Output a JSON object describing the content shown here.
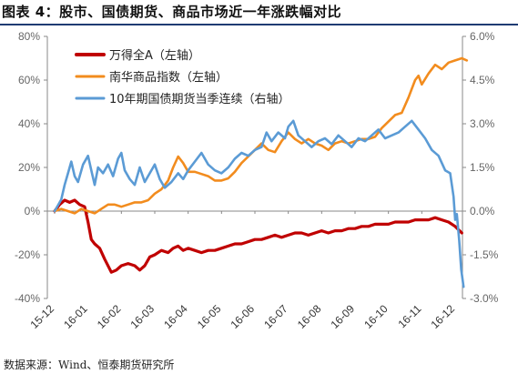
{
  "page": {
    "title": "图表 4：股市、国债期货、商品市场近一年涨跌幅对比",
    "source": "数据来源：Wind、恒泰期货研究所"
  },
  "chart_data": {
    "type": "line",
    "x": [
      "15-12",
      "16-01",
      "16-02",
      "16-03",
      "16-04",
      "16-05",
      "16-06",
      "16-07",
      "16-08",
      "16-09",
      "16-10",
      "16-11",
      "16-12"
    ],
    "left_axis": {
      "ylim": [
        -40,
        80
      ],
      "ticks": [
        "80%",
        "60%",
        "40%",
        "20%",
        "0%",
        "-20%",
        "-40%"
      ],
      "tick_values": [
        80,
        60,
        40,
        20,
        0,
        -20,
        -40
      ]
    },
    "right_axis": {
      "ylim": [
        -3.0,
        6.0
      ],
      "ticks": [
        "6.0%",
        "4.5%",
        "3.0%",
        "1.5%",
        "0.0%",
        "-1.5%",
        "-3.0%"
      ],
      "tick_values": [
        6.0,
        4.5,
        3.0,
        1.5,
        0.0,
        -1.5,
        -3.0
      ]
    },
    "legend_position": "top-left",
    "series": [
      {
        "name": "万得全A（左轴）",
        "color": "#c00000",
        "axis": "left",
        "points": [
          [
            0,
            0
          ],
          [
            0.15,
            3
          ],
          [
            0.3,
            5
          ],
          [
            0.45,
            4
          ],
          [
            0.6,
            5
          ],
          [
            0.75,
            3
          ],
          [
            0.9,
            2
          ],
          [
            1.0,
            -5
          ],
          [
            1.1,
            -13
          ],
          [
            1.2,
            -15
          ],
          [
            1.35,
            -17
          ],
          [
            1.5,
            -22
          ],
          [
            1.7,
            -28
          ],
          [
            1.85,
            -27
          ],
          [
            2.0,
            -25
          ],
          [
            2.2,
            -24
          ],
          [
            2.4,
            -25
          ],
          [
            2.55,
            -27
          ],
          [
            2.7,
            -25
          ],
          [
            2.85,
            -21
          ],
          [
            3.0,
            -20
          ],
          [
            3.2,
            -18
          ],
          [
            3.4,
            -19
          ],
          [
            3.55,
            -17
          ],
          [
            3.7,
            -16
          ],
          [
            3.85,
            -18
          ],
          [
            4.0,
            -17
          ],
          [
            4.2,
            -18
          ],
          [
            4.4,
            -19
          ],
          [
            4.6,
            -18
          ],
          [
            4.8,
            -18
          ],
          [
            5.0,
            -17
          ],
          [
            5.2,
            -16
          ],
          [
            5.4,
            -15
          ],
          [
            5.6,
            -15
          ],
          [
            5.8,
            -14
          ],
          [
            6.0,
            -13
          ],
          [
            6.2,
            -13
          ],
          [
            6.4,
            -12
          ],
          [
            6.6,
            -11
          ],
          [
            6.8,
            -12
          ],
          [
            7.0,
            -11
          ],
          [
            7.2,
            -10
          ],
          [
            7.4,
            -10
          ],
          [
            7.6,
            -11
          ],
          [
            7.8,
            -10
          ],
          [
            8.0,
            -9
          ],
          [
            8.2,
            -10
          ],
          [
            8.4,
            -9
          ],
          [
            8.6,
            -9
          ],
          [
            8.8,
            -8
          ],
          [
            9.0,
            -8
          ],
          [
            9.2,
            -7
          ],
          [
            9.4,
            -7
          ],
          [
            9.6,
            -6
          ],
          [
            9.8,
            -6
          ],
          [
            10.0,
            -6
          ],
          [
            10.2,
            -5
          ],
          [
            10.4,
            -5
          ],
          [
            10.6,
            -5
          ],
          [
            10.8,
            -4
          ],
          [
            11.0,
            -4
          ],
          [
            11.2,
            -4
          ],
          [
            11.4,
            -3
          ],
          [
            11.6,
            -4
          ],
          [
            11.8,
            -5
          ],
          [
            12.0,
            -7
          ],
          [
            12.2,
            -10
          ]
        ]
      },
      {
        "name": "南华商品指数（左轴）",
        "color": "#f28c1e",
        "axis": "left",
        "points": [
          [
            0,
            0
          ],
          [
            0.2,
            1
          ],
          [
            0.4,
            0
          ],
          [
            0.6,
            -1
          ],
          [
            0.8,
            1
          ],
          [
            1.0,
            0
          ],
          [
            1.2,
            -1
          ],
          [
            1.4,
            1
          ],
          [
            1.6,
            3
          ],
          [
            1.8,
            3
          ],
          [
            2.0,
            2
          ],
          [
            2.2,
            3
          ],
          [
            2.4,
            4
          ],
          [
            2.6,
            4
          ],
          [
            2.8,
            5
          ],
          [
            3.0,
            8
          ],
          [
            3.2,
            10
          ],
          [
            3.4,
            14
          ],
          [
            3.55,
            20
          ],
          [
            3.7,
            25
          ],
          [
            3.85,
            22
          ],
          [
            4.0,
            18
          ],
          [
            4.2,
            18
          ],
          [
            4.4,
            17
          ],
          [
            4.6,
            16
          ],
          [
            4.8,
            14
          ],
          [
            5.0,
            14
          ],
          [
            5.2,
            15
          ],
          [
            5.4,
            18
          ],
          [
            5.6,
            22
          ],
          [
            5.8,
            25
          ],
          [
            6.0,
            28
          ],
          [
            6.2,
            31
          ],
          [
            6.4,
            28
          ],
          [
            6.6,
            27
          ],
          [
            6.8,
            32
          ],
          [
            7.0,
            36
          ],
          [
            7.2,
            33
          ],
          [
            7.4,
            31
          ],
          [
            7.6,
            33
          ],
          [
            7.8,
            31
          ],
          [
            8.0,
            30
          ],
          [
            8.2,
            28
          ],
          [
            8.4,
            31
          ],
          [
            8.6,
            32
          ],
          [
            8.8,
            31
          ],
          [
            9.0,
            32
          ],
          [
            9.2,
            33
          ],
          [
            9.4,
            33
          ],
          [
            9.6,
            34
          ],
          [
            9.8,
            38
          ],
          [
            10.0,
            41
          ],
          [
            10.2,
            44
          ],
          [
            10.4,
            45
          ],
          [
            10.6,
            52
          ],
          [
            10.8,
            60
          ],
          [
            10.9,
            62
          ],
          [
            11.0,
            58
          ],
          [
            11.2,
            63
          ],
          [
            11.4,
            67
          ],
          [
            11.6,
            65
          ],
          [
            11.8,
            68
          ],
          [
            12.0,
            69
          ],
          [
            12.2,
            70
          ],
          [
            12.35,
            69
          ]
        ]
      },
      {
        "name": "10年期国债期货当季连续（右轴）",
        "color": "#5b9bd5",
        "axis": "right",
        "points": [
          [
            0,
            0
          ],
          [
            0.1,
            0.2
          ],
          [
            0.2,
            0.4
          ],
          [
            0.3,
            0.9
          ],
          [
            0.4,
            1.3
          ],
          [
            0.5,
            1.7
          ],
          [
            0.6,
            1.2
          ],
          [
            0.7,
            1.0
          ],
          [
            0.85,
            1.6
          ],
          [
            1.0,
            1.9
          ],
          [
            1.1,
            1.4
          ],
          [
            1.2,
            0.9
          ],
          [
            1.3,
            1.5
          ],
          [
            1.45,
            1.3
          ],
          [
            1.6,
            1.6
          ],
          [
            1.75,
            1.2
          ],
          [
            1.9,
            1.8
          ],
          [
            2.0,
            2.0
          ],
          [
            2.1,
            1.4
          ],
          [
            2.25,
            1.1
          ],
          [
            2.4,
            0.9
          ],
          [
            2.55,
            1.5
          ],
          [
            2.7,
            1.0
          ],
          [
            2.85,
            1.3
          ],
          [
            3.0,
            1.6
          ],
          [
            3.15,
            1.1
          ],
          [
            3.3,
            0.8
          ],
          [
            3.5,
            1.0
          ],
          [
            3.7,
            1.3
          ],
          [
            3.85,
            1.1
          ],
          [
            4.0,
            1.4
          ],
          [
            4.2,
            1.7
          ],
          [
            4.4,
            2.0
          ],
          [
            4.6,
            1.6
          ],
          [
            4.8,
            1.4
          ],
          [
            5.0,
            1.3
          ],
          [
            5.2,
            1.5
          ],
          [
            5.4,
            1.8
          ],
          [
            5.6,
            2.0
          ],
          [
            5.8,
            1.9
          ],
          [
            6.0,
            2.1
          ],
          [
            6.2,
            2.2
          ],
          [
            6.35,
            2.7
          ],
          [
            6.5,
            2.4
          ],
          [
            6.7,
            2.7
          ],
          [
            6.9,
            2.5
          ],
          [
            7.0,
            2.9
          ],
          [
            7.15,
            3.1
          ],
          [
            7.3,
            2.6
          ],
          [
            7.5,
            2.4
          ],
          [
            7.7,
            2.2
          ],
          [
            7.9,
            2.4
          ],
          [
            8.1,
            2.5
          ],
          [
            8.3,
            2.3
          ],
          [
            8.5,
            2.6
          ],
          [
            8.7,
            2.4
          ],
          [
            8.9,
            2.2
          ],
          [
            9.1,
            2.5
          ],
          [
            9.3,
            2.4
          ],
          [
            9.5,
            2.6
          ],
          [
            9.7,
            2.8
          ],
          [
            9.9,
            2.5
          ],
          [
            10.1,
            2.6
          ],
          [
            10.3,
            2.7
          ],
          [
            10.5,
            2.9
          ],
          [
            10.7,
            3.1
          ],
          [
            10.9,
            2.8
          ],
          [
            11.1,
            2.5
          ],
          [
            11.3,
            2.1
          ],
          [
            11.5,
            1.9
          ],
          [
            11.7,
            1.4
          ],
          [
            11.85,
            1.3
          ],
          [
            11.95,
            0.5
          ],
          [
            12.0,
            -0.3
          ],
          [
            12.05,
            -0.1
          ],
          [
            12.12,
            -1.0
          ],
          [
            12.18,
            -2.0
          ],
          [
            12.25,
            -2.6
          ]
        ]
      }
    ]
  }
}
